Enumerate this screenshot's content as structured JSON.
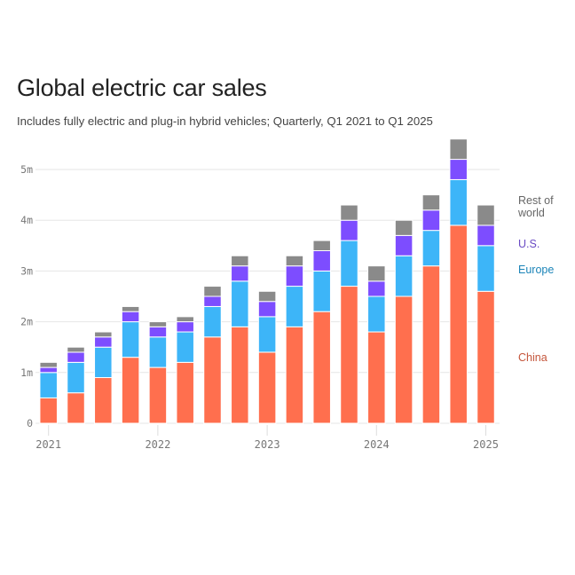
{
  "title": "Global electric car sales",
  "subtitle": "Includes fully electric and plug-in hybrid vehicles; Quarterly, Q1 2021 to Q1 2025",
  "chart_data": {
    "type": "bar",
    "stacked": true,
    "title": "Global electric car sales",
    "subtitle": "Includes fully electric and plug-in hybrid vehicles; Quarterly, Q1 2021 to Q1 2025",
    "xlabel": "",
    "ylabel": "",
    "ylim": [
      0,
      5.6
    ],
    "yunit": "million vehicles",
    "grid": true,
    "legend_position": "right",
    "categories": [
      "Q1 2021",
      "Q2 2021",
      "Q3 2021",
      "Q4 2021",
      "Q1 2022",
      "Q2 2022",
      "Q3 2022",
      "Q4 2022",
      "Q1 2023",
      "Q2 2023",
      "Q3 2023",
      "Q4 2023",
      "Q1 2024",
      "Q2 2024",
      "Q3 2024",
      "Q4 2024",
      "Q1 2025"
    ],
    "x_tick_labels": [
      {
        "label": "2021",
        "category_index": 0
      },
      {
        "label": "2022",
        "category_index": 4
      },
      {
        "label": "2023",
        "category_index": 8
      },
      {
        "label": "2024",
        "category_index": 12
      },
      {
        "label": "2025",
        "category_index": 16
      }
    ],
    "y_ticks": [
      {
        "value": 0,
        "label": "0"
      },
      {
        "value": 1,
        "label": "1m"
      },
      {
        "value": 2,
        "label": "2m"
      },
      {
        "value": 3,
        "label": "3m"
      },
      {
        "value": 4,
        "label": "4m"
      },
      {
        "value": 5,
        "label": "5m"
      }
    ],
    "series": [
      {
        "name": "China",
        "color": "#FF6F4E",
        "label_color": "#C4553B",
        "values": [
          0.5,
          0.6,
          0.9,
          1.3,
          1.1,
          1.2,
          1.7,
          1.9,
          1.4,
          1.9,
          2.2,
          2.7,
          1.8,
          2.5,
          3.1,
          3.9,
          2.6
        ]
      },
      {
        "name": "Europe",
        "color": "#3DB5F8",
        "label_color": "#1B84B8",
        "values": [
          0.5,
          0.6,
          0.6,
          0.7,
          0.6,
          0.6,
          0.6,
          0.9,
          0.7,
          0.8,
          0.8,
          0.9,
          0.7,
          0.8,
          0.7,
          0.9,
          0.9
        ]
      },
      {
        "name": "U.S.",
        "color": "#7D4DFF",
        "label_color": "#6A4BC4",
        "values": [
          0.1,
          0.2,
          0.2,
          0.2,
          0.2,
          0.2,
          0.2,
          0.3,
          0.3,
          0.4,
          0.4,
          0.4,
          0.3,
          0.4,
          0.4,
          0.4,
          0.4
        ]
      },
      {
        "name": "Rest of world",
        "color": "#8A8A8A",
        "label_color": "#666666",
        "values": [
          0.1,
          0.1,
          0.1,
          0.1,
          0.1,
          0.1,
          0.2,
          0.2,
          0.2,
          0.2,
          0.2,
          0.3,
          0.3,
          0.3,
          0.3,
          0.4,
          0.4
        ]
      }
    ]
  },
  "legend": [
    {
      "name": "Rest of world",
      "line1": "Rest of",
      "line2": "world"
    },
    {
      "name": "U.S.",
      "line1": "U.S."
    },
    {
      "name": "Europe",
      "line1": "Europe"
    },
    {
      "name": "China",
      "line1": "China"
    }
  ]
}
